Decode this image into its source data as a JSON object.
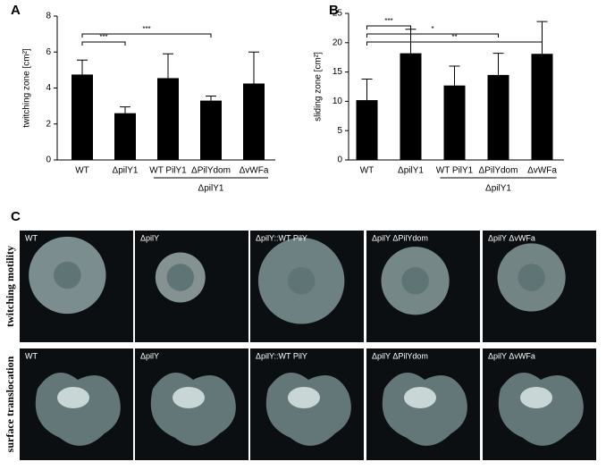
{
  "chart_data": [
    {
      "type": "bar",
      "panel": "A",
      "ylabel": "twitching zone [cm²]",
      "categories": [
        "WT",
        "ΔpilY1",
        "WT PilY1",
        "ΔPilYdom",
        "ΔvWFa"
      ],
      "values": [
        4.75,
        2.6,
        4.55,
        3.3,
        4.25
      ],
      "errors": [
        0.8,
        0.35,
        1.35,
        0.25,
        1.75
      ],
      "color": "#000000",
      "ylim": [
        0,
        8
      ],
      "yticks": [
        0,
        2,
        4,
        6,
        8
      ],
      "significance": [
        {
          "between": [
            "WT",
            "ΔpilY1"
          ],
          "label": "***"
        },
        {
          "between": [
            "WT",
            "ΔPilYdom"
          ],
          "label": "***"
        }
      ],
      "group": {
        "label": "ΔpilY1",
        "categories": [
          "WT PilY1",
          "ΔPilYdom",
          "ΔvWFa"
        ]
      }
    },
    {
      "type": "bar",
      "panel": "B",
      "ylabel": "sliding zone [cm²]",
      "categories": [
        "WT",
        "ΔpilY1",
        "WT PilY1",
        "ΔPilYdom",
        "ΔvWFa"
      ],
      "values": [
        10.2,
        18.2,
        12.7,
        14.5,
        18.1
      ],
      "errors": [
        3.6,
        4.1,
        3.3,
        3.7,
        5.5
      ],
      "color": "#000000",
      "ylim": [
        0,
        25
      ],
      "yticks": [
        0,
        5,
        10,
        15,
        20,
        25
      ],
      "significance": [
        {
          "between": [
            "WT",
            "ΔpilY1"
          ],
          "label": "***"
        },
        {
          "between": [
            "WT",
            "ΔPilYdom"
          ],
          "label": "*"
        },
        {
          "between": [
            "WT",
            "ΔvWFa"
          ],
          "label": "**"
        }
      ],
      "group": {
        "label": "ΔpilY1",
        "categories": [
          "WT PilY1",
          "ΔPilYdom",
          "ΔvWFa"
        ]
      }
    }
  ],
  "photos": {
    "panel": "C",
    "rows": [
      "twitching motility",
      "surface translocation"
    ],
    "columns": [
      "WT",
      "ΔpilY",
      "ΔpilY::WT PilY",
      "ΔpilY ΔPilYdom",
      "ΔpilY ΔvWFa"
    ]
  }
}
